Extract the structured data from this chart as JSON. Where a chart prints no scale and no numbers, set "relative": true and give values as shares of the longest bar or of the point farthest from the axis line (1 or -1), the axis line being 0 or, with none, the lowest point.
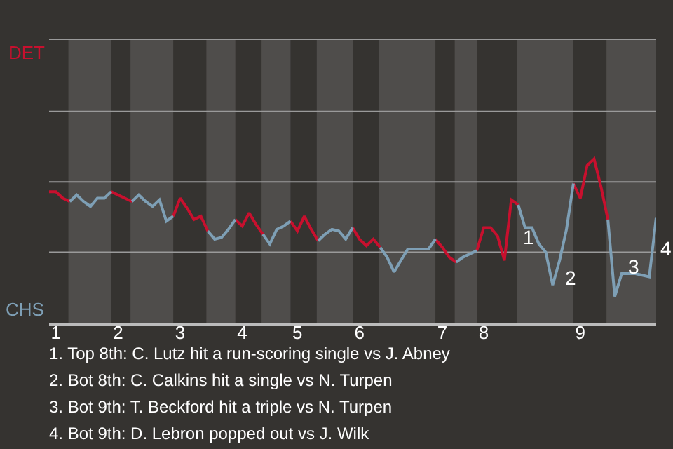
{
  "chart_data": {
    "type": "line",
    "relative": true,
    "marker": "none",
    "line_style": "solid",
    "categories": [
      null,
      "1",
      null,
      null,
      null,
      null,
      null,
      null,
      null,
      null,
      "2",
      null,
      null,
      null,
      null,
      null,
      null,
      null,
      null,
      "3",
      null,
      null,
      null,
      null,
      null,
      null,
      null,
      null,
      "4",
      null,
      null,
      null,
      null,
      null,
      null,
      null,
      "5",
      null,
      null,
      null,
      null,
      null,
      null,
      null,
      null,
      "6",
      null,
      null,
      null,
      null,
      null,
      null,
      null,
      null,
      null,
      null,
      null,
      "7",
      null,
      null,
      null,
      null,
      null,
      "8",
      null,
      null,
      null,
      null,
      null,
      null,
      null,
      null,
      null,
      null,
      null,
      null,
      null,
      "9",
      null,
      null,
      null,
      null,
      null,
      null,
      null,
      null,
      null,
      null,
      null
    ],
    "ref_lines": [
      {
        "axis": "y",
        "value": 0.43,
        "color": "#9a9a9a"
      },
      {
        "axis": "y",
        "value": 0.86,
        "color": "#9a9a9a"
      },
      {
        "axis": "y",
        "value": 1.29,
        "color": "#9a9a9a"
      }
    ],
    "series": [
      {
        "color": "#c8102e",
        "values": [
          0.8,
          0.8,
          0.76,
          0.74,
          null,
          null,
          null,
          null,
          null,
          0.8,
          0.78,
          0.76,
          0.74,
          null,
          null,
          null,
          null,
          null,
          0.65,
          0.76,
          0.7,
          0.63,
          0.65,
          0.56,
          null,
          null,
          null,
          0.63,
          0.59,
          0.67,
          0.6,
          0.54,
          null,
          null,
          null,
          0.62,
          0.56,
          0.65,
          0.57,
          0.5,
          null,
          null,
          null,
          null,
          0.58,
          0.51,
          0.47,
          0.51,
          0.46,
          null,
          null,
          null,
          null,
          null,
          null,
          null,
          0.51,
          0.46,
          0.4,
          0.37,
          null,
          null,
          0.44,
          0.58,
          0.58,
          0.53,
          0.38,
          0.75,
          0.72,
          null,
          null,
          null,
          null,
          null,
          null,
          null,
          0.85,
          0.76,
          0.96,
          1.0,
          0.83,
          0.63,
          null,
          null,
          null,
          null,
          null,
          null,
          null
        ]
      },
      {
        "color": "#7e9fb5",
        "values": [
          null,
          null,
          null,
          0.74,
          0.78,
          0.74,
          0.71,
          0.76,
          0.76,
          0.8,
          null,
          null,
          0.74,
          0.78,
          0.74,
          0.71,
          0.75,
          0.62,
          0.65,
          null,
          null,
          null,
          null,
          0.56,
          0.51,
          0.52,
          0.57,
          0.63,
          null,
          null,
          null,
          0.54,
          0.48,
          0.57,
          0.59,
          0.62,
          null,
          null,
          null,
          0.5,
          0.54,
          0.57,
          0.56,
          0.51,
          0.58,
          null,
          null,
          null,
          0.46,
          0.4,
          0.31,
          0.38,
          0.45,
          0.45,
          0.45,
          0.45,
          0.51,
          null,
          null,
          0.37,
          0.4,
          0.42,
          0.44,
          null,
          null,
          null,
          null,
          null,
          0.72,
          0.58,
          0.58,
          0.48,
          0.43,
          0.23,
          0.38,
          0.57,
          0.85,
          null,
          null,
          null,
          null,
          0.63,
          0.16,
          0.3,
          0.3,
          0.3,
          0.29,
          0.28,
          0.64
        ]
      }
    ],
    "annotations": [
      "DET",
      "CHS",
      "1",
      "2",
      "3",
      "4",
      "1. Top 8th: C. Lutz hit a run-scoring single vs J. Abney",
      "2. Bot 8th: C. Calkins hit a single vs N. Turpen",
      "3. Bot 9th: T. Beckford hit a triple vs N. Turpen",
      "4. Bot 9th: D. Lebron popped out vs J. Wilk"
    ]
  }
}
